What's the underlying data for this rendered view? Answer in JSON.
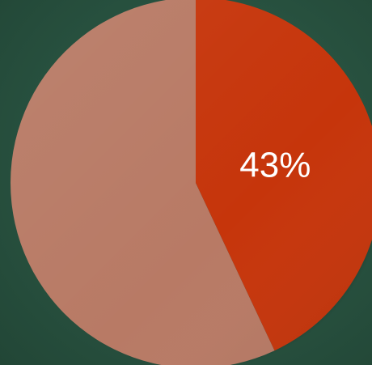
{
  "chart_data": {
    "type": "pie",
    "slices": [
      {
        "value": 43,
        "label": "43%",
        "color": "#c6350b"
      },
      {
        "value": 57,
        "label": "",
        "color": "#b87a65"
      }
    ]
  }
}
